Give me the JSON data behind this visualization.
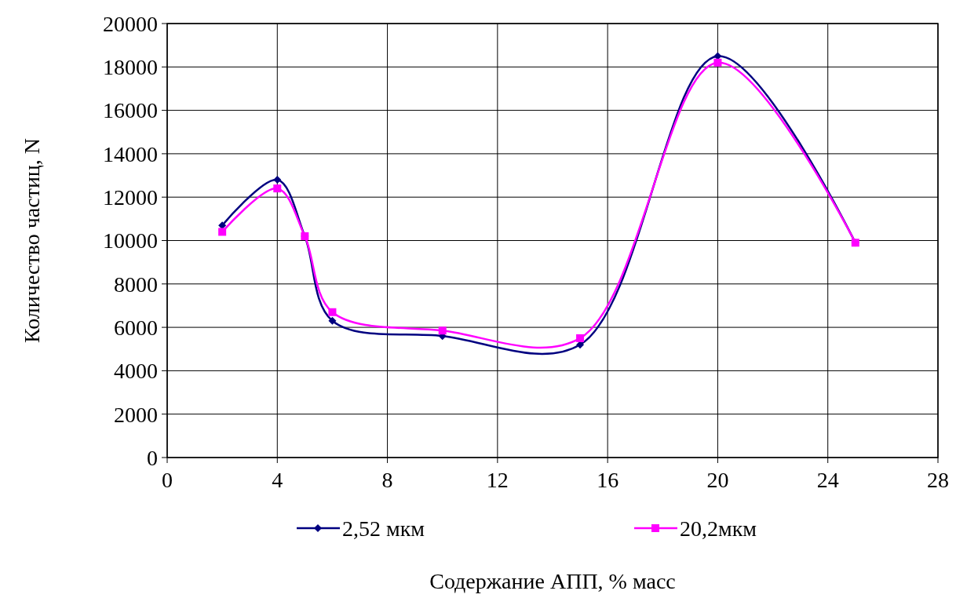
{
  "chart_data": {
    "type": "line",
    "xlabel": "Содержание АПП, % масс",
    "ylabel": "Количество частиц, N",
    "x": [
      2,
      4,
      5,
      6,
      10,
      15,
      20,
      25
    ],
    "series": [
      {
        "name": "2,52 мкм",
        "color": "#000080",
        "marker": "diamond",
        "values": [
          10700,
          12800,
          10200,
          6300,
          5600,
          5200,
          18500,
          9900
        ]
      },
      {
        "name": "20,2мкм",
        "color": "#ff00ff",
        "marker": "square",
        "values": [
          10400,
          12400,
          10200,
          6700,
          5850,
          5500,
          18200,
          9900
        ]
      }
    ],
    "xlim": [
      0,
      28
    ],
    "xticks": [
      0,
      4,
      8,
      12,
      16,
      20,
      24,
      28
    ],
    "ylim": [
      0,
      20000
    ],
    "yticks": [
      0,
      2000,
      4000,
      6000,
      8000,
      10000,
      12000,
      14000,
      16000,
      18000,
      20000
    ],
    "grid": true,
    "legend": "bottom",
    "line_style": "solid"
  }
}
